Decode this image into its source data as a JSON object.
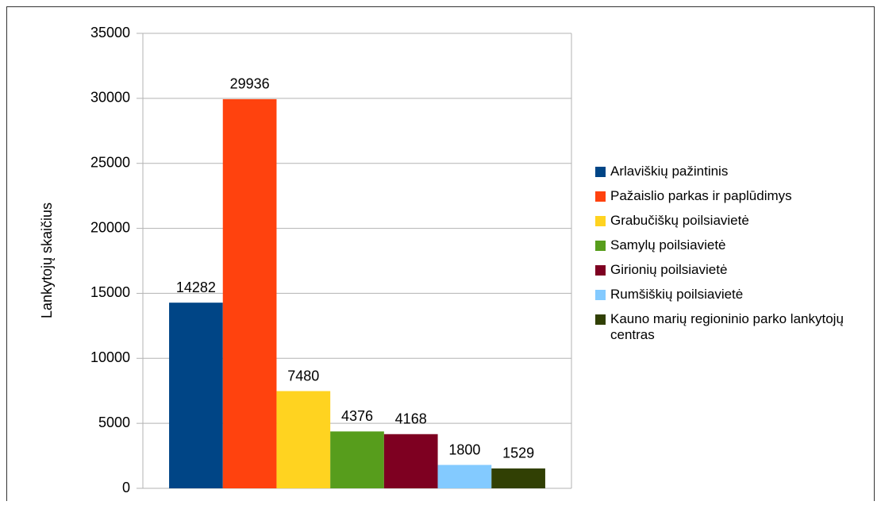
{
  "chart_data": {
    "type": "bar",
    "y_label": "Lankytojų skaičius",
    "ylim": [
      0,
      35000
    ],
    "yticks": [
      0,
      5000,
      10000,
      15000,
      20000,
      25000,
      30000,
      35000
    ],
    "grid": true,
    "legend": "right",
    "series": [
      {
        "name": "Arlaviškių pažintinis",
        "color": "#004586",
        "values": [
          14282
        ]
      },
      {
        "name": "Pažaislio parkas ir paplūdimys",
        "color": "#ff420e",
        "values": [
          29936
        ]
      },
      {
        "name": "Grabučiškų poilsiavietė",
        "color": "#ffd320",
        "values": [
          7480
        ]
      },
      {
        "name": "Samylų poilsiavietė",
        "color": "#579d1c",
        "values": [
          4376
        ]
      },
      {
        "name": "Girionių poilsiavietė",
        "color": "#7e0021",
        "values": [
          4168
        ]
      },
      {
        "name": "Rumšiškių poilsiavietė",
        "color": "#83caff",
        "values": [
          1800
        ]
      },
      {
        "name": "Kauno marių regioninio parko lankytojų centras",
        "color": "#314004",
        "values": [
          1529
        ]
      }
    ]
  }
}
